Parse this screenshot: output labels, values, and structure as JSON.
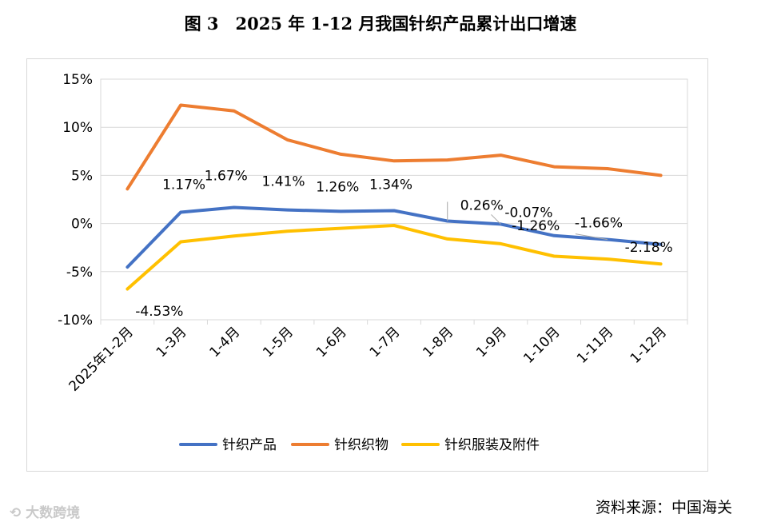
{
  "figure": {
    "title": "图 3　2025 年 1-12 月我国针织产品累计出口增速",
    "source": "资料来源：中国海关",
    "watermark": "⟲ 大数跨境"
  },
  "chart_data": {
    "type": "line",
    "title": "图 3　2025 年 1-12 月我国针织产品累计出口增速",
    "categories": [
      "2025年1-2月",
      "1-3月",
      "1-4月",
      "1-5月",
      "1-6月",
      "1-7月",
      "1-8月",
      "1-9月",
      "1-10月",
      "1-11月",
      "1-12月"
    ],
    "ylim": [
      -10,
      15
    ],
    "yticks": [
      -10,
      -5,
      0,
      5,
      10,
      15
    ],
    "ytick_labels": [
      "-10%",
      "-5%",
      "0%",
      "5%",
      "10%",
      "15%"
    ],
    "grid": "horizontal",
    "legend_position": "bottom",
    "series": [
      {
        "name": "针织产品",
        "color": "#4472C4",
        "values": [
          -4.53,
          1.17,
          1.67,
          1.41,
          1.26,
          1.34,
          0.26,
          -0.07,
          -1.26,
          -1.66,
          -2.18
        ],
        "data_labels": [
          "-4.53%",
          "1.17%",
          "1.67%",
          "1.41%",
          "1.26%",
          "1.34%",
          "0.26%",
          "-0.07%",
          "-1.26%",
          "-1.66%",
          "-2.18%"
        ]
      },
      {
        "name": "针织织物",
        "color": "#ED7D31",
        "values": [
          3.6,
          12.3,
          11.7,
          8.7,
          7.2,
          6.5,
          6.6,
          7.1,
          5.9,
          5.7,
          5.0
        ]
      },
      {
        "name": "针织服装及附件",
        "color": "#FFC000",
        "values": [
          -6.8,
          -1.9,
          -1.3,
          -0.8,
          -0.5,
          -0.2,
          -1.6,
          -2.1,
          -3.4,
          -3.7,
          -4.2
        ]
      }
    ]
  }
}
